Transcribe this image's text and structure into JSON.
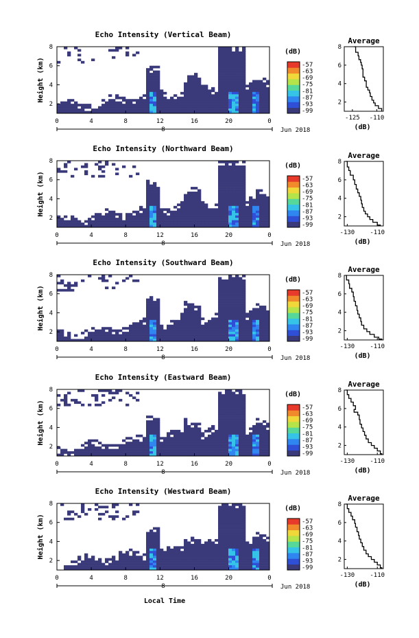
{
  "figure": {
    "xlabel": "Local Time",
    "date_label": "Jun 2018",
    "cbar_unit": "(dB)",
    "cbar_ticks": [
      "-57",
      "-63",
      "-69",
      "-75",
      "-81",
      "-87",
      "-93",
      "-99"
    ],
    "cbar_colors": [
      "#3a3a7a",
      "#2e4fd6",
      "#2f86f0",
      "#35c3e8",
      "#56d89a",
      "#b5e34a",
      "#f0d73a",
      "#f08a2a",
      "#e83a2a"
    ]
  },
  "chart_data": [
    {
      "type": "heatmap",
      "title": "Echo Intensity (Vertical Beam)",
      "ylabel": "Height (km)",
      "xticks": [
        "0",
        "4",
        "8",
        "12",
        "16",
        "20",
        "0"
      ],
      "secondary_xtick": "8",
      "yticks": [
        "2",
        "4",
        "6",
        "8"
      ],
      "ylim": [
        1,
        8
      ],
      "xlim": [
        0,
        24
      ],
      "profile": {
        "title": "Average",
        "xlabel": "(dB)",
        "xticks": [
          "-125",
          "-110"
        ],
        "yticks": [
          "2",
          "4",
          "6",
          "8"
        ],
        "xlim": [
          -130,
          -106
        ],
        "ylim": [
          1,
          8
        ],
        "points": [
          [
            -124,
            8
          ],
          [
            -123,
            7.4
          ],
          [
            -121.5,
            7.0
          ],
          [
            -121,
            6.6
          ],
          [
            -120,
            6.3
          ],
          [
            -119.5,
            6.0
          ],
          [
            -119,
            5.6
          ],
          [
            -118.5,
            5.2
          ],
          [
            -118.5,
            4.7
          ],
          [
            -117.5,
            4.3
          ],
          [
            -116.5,
            4.0
          ],
          [
            -116.5,
            3.6
          ],
          [
            -115.5,
            3.3
          ],
          [
            -114.5,
            3.0
          ],
          [
            -114,
            2.6
          ],
          [
            -113,
            2.2
          ],
          [
            -112,
            1.9
          ],
          [
            -111,
            1.6
          ],
          [
            -109,
            1.3
          ],
          [
            -107,
            1.0
          ]
        ]
      }
    },
    {
      "type": "heatmap",
      "title": "Echo Intensity (Northward Beam)",
      "ylabel": "Height (km)",
      "xticks": [
        "0",
        "4",
        "8",
        "12",
        "16",
        "20",
        "0"
      ],
      "secondary_xtick": "8",
      "yticks": [
        "2",
        "4",
        "6",
        "8"
      ],
      "ylim": [
        1,
        8
      ],
      "xlim": [
        0,
        24
      ],
      "profile": {
        "title": "Average",
        "xlabel": "(dB)",
        "xticks": [
          "-130",
          "-110"
        ],
        "yticks": [
          "2",
          "4",
          "6",
          "8"
        ],
        "xlim": [
          -132,
          -106
        ],
        "ylim": [
          1,
          8
        ],
        "points": [
          [
            -131,
            8
          ],
          [
            -130,
            7.4
          ],
          [
            -129,
            7.0
          ],
          [
            -128,
            6.5
          ],
          [
            -126,
            6.0
          ],
          [
            -125,
            5.5
          ],
          [
            -124,
            5.0
          ],
          [
            -123,
            4.6
          ],
          [
            -122,
            4.2
          ],
          [
            -121,
            3.8
          ],
          [
            -120.5,
            3.4
          ],
          [
            -120,
            3.0
          ],
          [
            -119,
            2.6
          ],
          [
            -118,
            2.3
          ],
          [
            -116.5,
            2.0
          ],
          [
            -115,
            1.7
          ],
          [
            -113,
            1.4
          ],
          [
            -110,
            1.1
          ],
          [
            -108,
            1.0
          ]
        ]
      }
    },
    {
      "type": "heatmap",
      "title": "Echo Intensity (Southward Beam)",
      "ylabel": "Height (km)",
      "xticks": [
        "0",
        "4",
        "8",
        "12",
        "16",
        "20",
        "0"
      ],
      "secondary_xtick": "8",
      "yticks": [
        "2",
        "4",
        "6",
        "8"
      ],
      "ylim": [
        1,
        8
      ],
      "xlim": [
        0,
        24
      ],
      "profile": {
        "title": "Average",
        "xlabel": "(dB)",
        "xticks": [
          "-130",
          "-110"
        ],
        "yticks": [
          "2",
          "4",
          "6",
          "8"
        ],
        "xlim": [
          -132,
          -106
        ],
        "ylim": [
          1,
          8
        ],
        "points": [
          [
            -131,
            8
          ],
          [
            -130.5,
            7.5
          ],
          [
            -129,
            7.1
          ],
          [
            -128.5,
            6.6
          ],
          [
            -127,
            6.2
          ],
          [
            -126,
            5.7
          ],
          [
            -125.5,
            5.2
          ],
          [
            -124.5,
            4.7
          ],
          [
            -123.5,
            4.2
          ],
          [
            -123,
            3.8
          ],
          [
            -122,
            3.4
          ],
          [
            -121,
            3.0
          ],
          [
            -120.5,
            2.6
          ],
          [
            -119,
            2.2
          ],
          [
            -117,
            1.9
          ],
          [
            -115,
            1.6
          ],
          [
            -112,
            1.3
          ],
          [
            -109,
            1.1
          ],
          [
            -107,
            1.0
          ]
        ]
      }
    },
    {
      "type": "heatmap",
      "title": "Echo Intensity (Eastward Beam)",
      "ylabel": "Height (km)",
      "xticks": [
        "0",
        "4",
        "8",
        "12",
        "16",
        "20",
        "0"
      ],
      "secondary_xtick": "8",
      "yticks": [
        "2",
        "4",
        "6",
        "8"
      ],
      "ylim": [
        1,
        8
      ],
      "xlim": [
        0,
        24
      ],
      "profile": {
        "title": "Average",
        "xlabel": "(dB)",
        "xticks": [
          "-130",
          "-110"
        ],
        "yticks": [
          "2",
          "4",
          "6",
          "8"
        ],
        "xlim": [
          -132,
          -106
        ],
        "ylim": [
          1,
          8
        ],
        "points": [
          [
            -131,
            8
          ],
          [
            -130,
            7.5
          ],
          [
            -129,
            7.1
          ],
          [
            -127.5,
            6.7
          ],
          [
            -126,
            6.3
          ],
          [
            -124.5,
            5.9
          ],
          [
            -125.5,
            5.6
          ],
          [
            -123,
            5.3
          ],
          [
            -122,
            4.8
          ],
          [
            -121.5,
            4.3
          ],
          [
            -120.5,
            3.9
          ],
          [
            -119.5,
            3.5
          ],
          [
            -118.5,
            3.1
          ],
          [
            -117.5,
            2.7
          ],
          [
            -116,
            2.3
          ],
          [
            -114,
            2.0
          ],
          [
            -112,
            1.7
          ],
          [
            -110,
            1.4
          ],
          [
            -108,
            1.1
          ],
          [
            -107,
            1.0
          ]
        ]
      }
    },
    {
      "type": "heatmap",
      "title": "Echo Intensity (Westward Beam)",
      "ylabel": "Height (km)",
      "xticks": [
        "0",
        "4",
        "8",
        "12",
        "16",
        "20",
        "0"
      ],
      "secondary_xtick": "8",
      "yticks": [
        "2",
        "4",
        "6",
        "8"
      ],
      "ylim": [
        1,
        8
      ],
      "xlim": [
        0,
        24
      ],
      "profile": {
        "title": "Average",
        "xlabel": "(dB)",
        "xticks": [
          "-130",
          "-110"
        ],
        "yticks": [
          "2",
          "4",
          "6",
          "8"
        ],
        "xlim": [
          -132,
          -106
        ],
        "ylim": [
          1,
          8
        ],
        "points": [
          [
            -131,
            8
          ],
          [
            -130,
            7.5
          ],
          [
            -129,
            7.1
          ],
          [
            -127.5,
            6.7
          ],
          [
            -126.5,
            6.3
          ],
          [
            -125,
            5.9
          ],
          [
            -124.5,
            5.5
          ],
          [
            -123.5,
            5.0
          ],
          [
            -122.5,
            4.6
          ],
          [
            -122,
            4.2
          ],
          [
            -121,
            3.8
          ],
          [
            -120,
            3.4
          ],
          [
            -119,
            3.0
          ],
          [
            -117.5,
            2.6
          ],
          [
            -116,
            2.3
          ],
          [
            -114,
            2.0
          ],
          [
            -112,
            1.7
          ],
          [
            -110,
            1.4
          ],
          [
            -108,
            1.1
          ],
          [
            -107,
            1.0
          ]
        ]
      }
    }
  ]
}
